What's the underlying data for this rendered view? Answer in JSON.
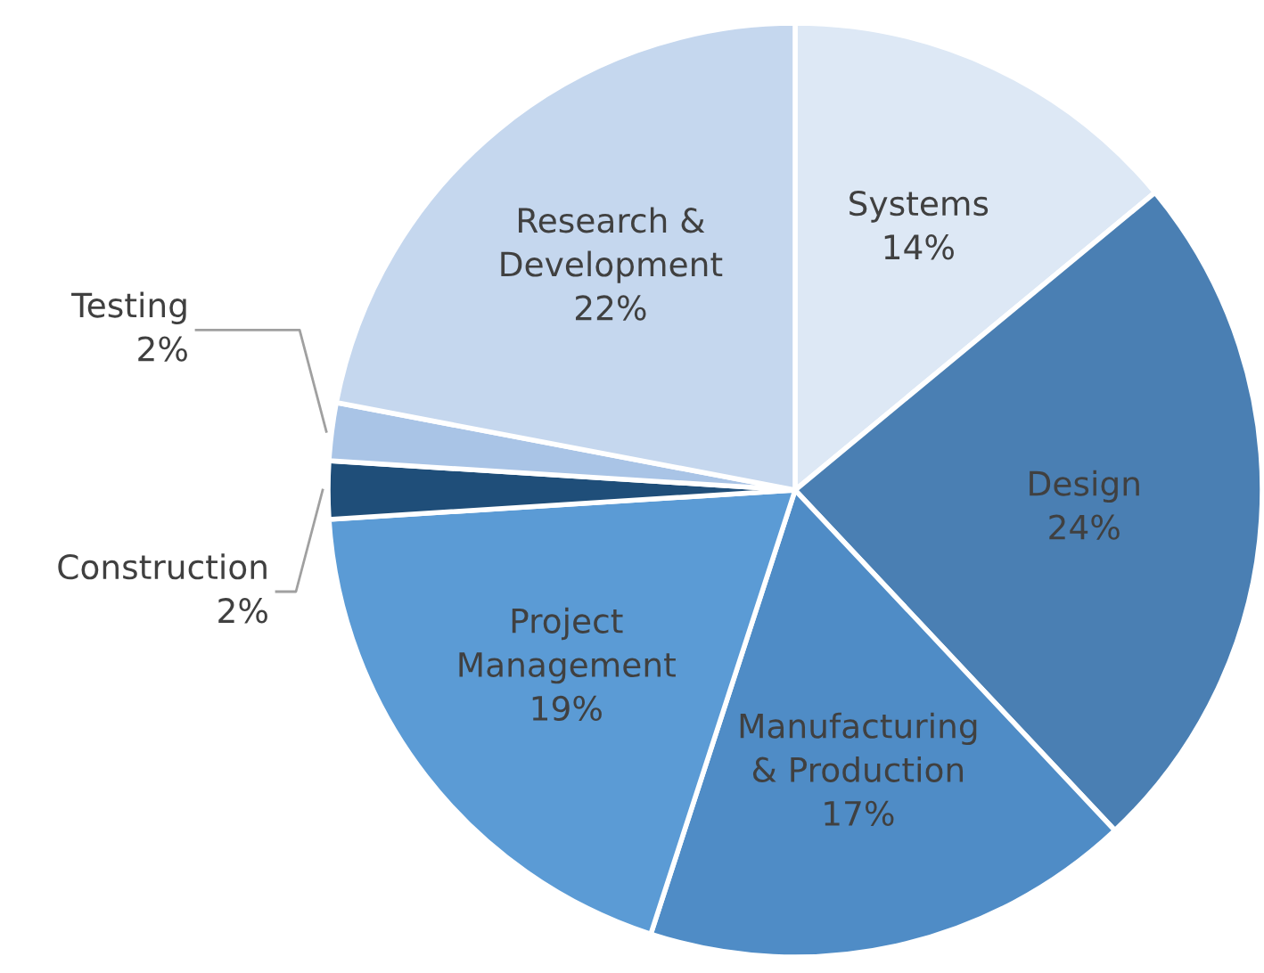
{
  "chart_data": {
    "type": "pie",
    "categories": [
      "Systems",
      "Design",
      "Manufacturing\n& Production",
      "Project\nManagement",
      "Construction",
      "Testing",
      "Research &\nDevelopment"
    ],
    "values": [
      14,
      24,
      17,
      19,
      2,
      2,
      22
    ],
    "colors": [
      "#dde8f5",
      "#4a7fb3",
      "#4f8cc6",
      "#5b9bd5",
      "#1f4e79",
      "#a9c4e6",
      "#c5d7ee"
    ],
    "value_labels": [
      "14%",
      "24%",
      "17%",
      "19%",
      "2%",
      "2%",
      "22%"
    ],
    "legend": false
  }
}
